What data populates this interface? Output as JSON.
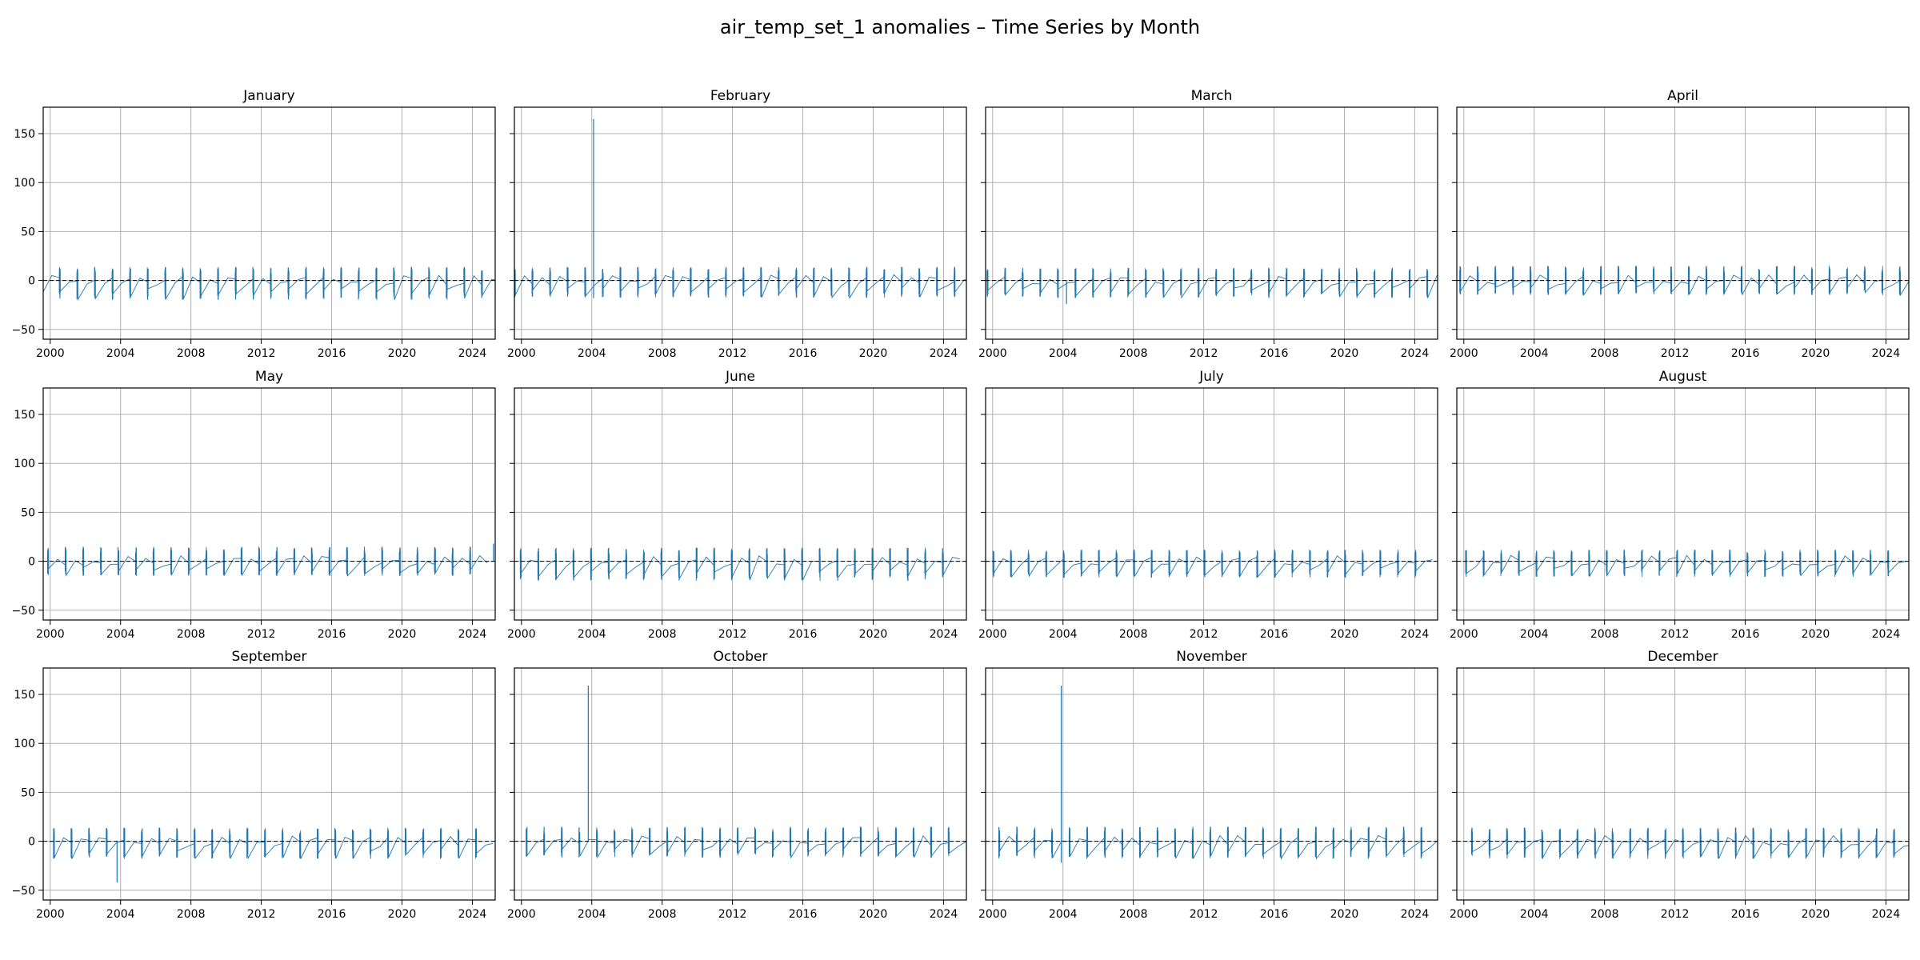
{
  "figure": {
    "title": "air_temp_set_1 anomalies – Time Series by Month"
  },
  "chart_data": {
    "type": "line",
    "layout": "3x4 small multiples, shared x and y axes",
    "x_unit": "year",
    "xlim": [
      1999.6,
      2025.3
    ],
    "ylim": [
      -60,
      177
    ],
    "x_ticks": [
      "2000",
      "2004",
      "2008",
      "2012",
      "2016",
      "2020",
      "2024"
    ],
    "y_ticks": [
      "−50",
      "0",
      "50",
      "100",
      "150"
    ],
    "grid": true,
    "legend": "none",
    "reference_line": {
      "y": 0,
      "style": "dashed",
      "color": "#000000"
    },
    "series_color": "#1f77b4",
    "description_note": "each panel plots hourly anomalies for one calendar month across years 2000–2025; most values lie within about ±20, with occasional spikes",
    "panels": [
      {
        "title": "January",
        "typical_range": [
          -20,
          14
        ],
        "spikes": []
      },
      {
        "title": "February",
        "typical_range": [
          -18,
          14
        ],
        "spikes": [
          {
            "x": 2004.1,
            "y": 165
          },
          {
            "x": 2004.1,
            "y": -18
          }
        ]
      },
      {
        "title": "March",
        "typical_range": [
          -18,
          13
        ],
        "spikes": [
          {
            "x": 2004.2,
            "y": -24
          }
        ]
      },
      {
        "title": "April",
        "typical_range": [
          -15,
          15
        ],
        "spikes": []
      },
      {
        "title": "May",
        "typical_range": [
          -15,
          15
        ],
        "spikes": [
          {
            "x": 2025.2,
            "y": 18
          }
        ]
      },
      {
        "title": "June",
        "typical_range": [
          -20,
          14
        ],
        "spikes": []
      },
      {
        "title": "July",
        "typical_range": [
          -17,
          12
        ],
        "spikes": []
      },
      {
        "title": "August",
        "typical_range": [
          -16,
          12
        ],
        "spikes": []
      },
      {
        "title": "September",
        "typical_range": [
          -18,
          14
        ],
        "spikes": [
          {
            "x": 2003.8,
            "y": -42
          }
        ]
      },
      {
        "title": "October",
        "typical_range": [
          -17,
          15
        ],
        "spikes": [
          {
            "x": 2003.8,
            "y": 159
          }
        ]
      },
      {
        "title": "November",
        "typical_range": [
          -18,
          15
        ],
        "spikes": [
          {
            "x": 2003.9,
            "y": 159
          },
          {
            "x": 2003.9,
            "y": -22
          }
        ]
      },
      {
        "title": "December",
        "typical_range": [
          -18,
          14
        ],
        "spikes": []
      }
    ]
  }
}
